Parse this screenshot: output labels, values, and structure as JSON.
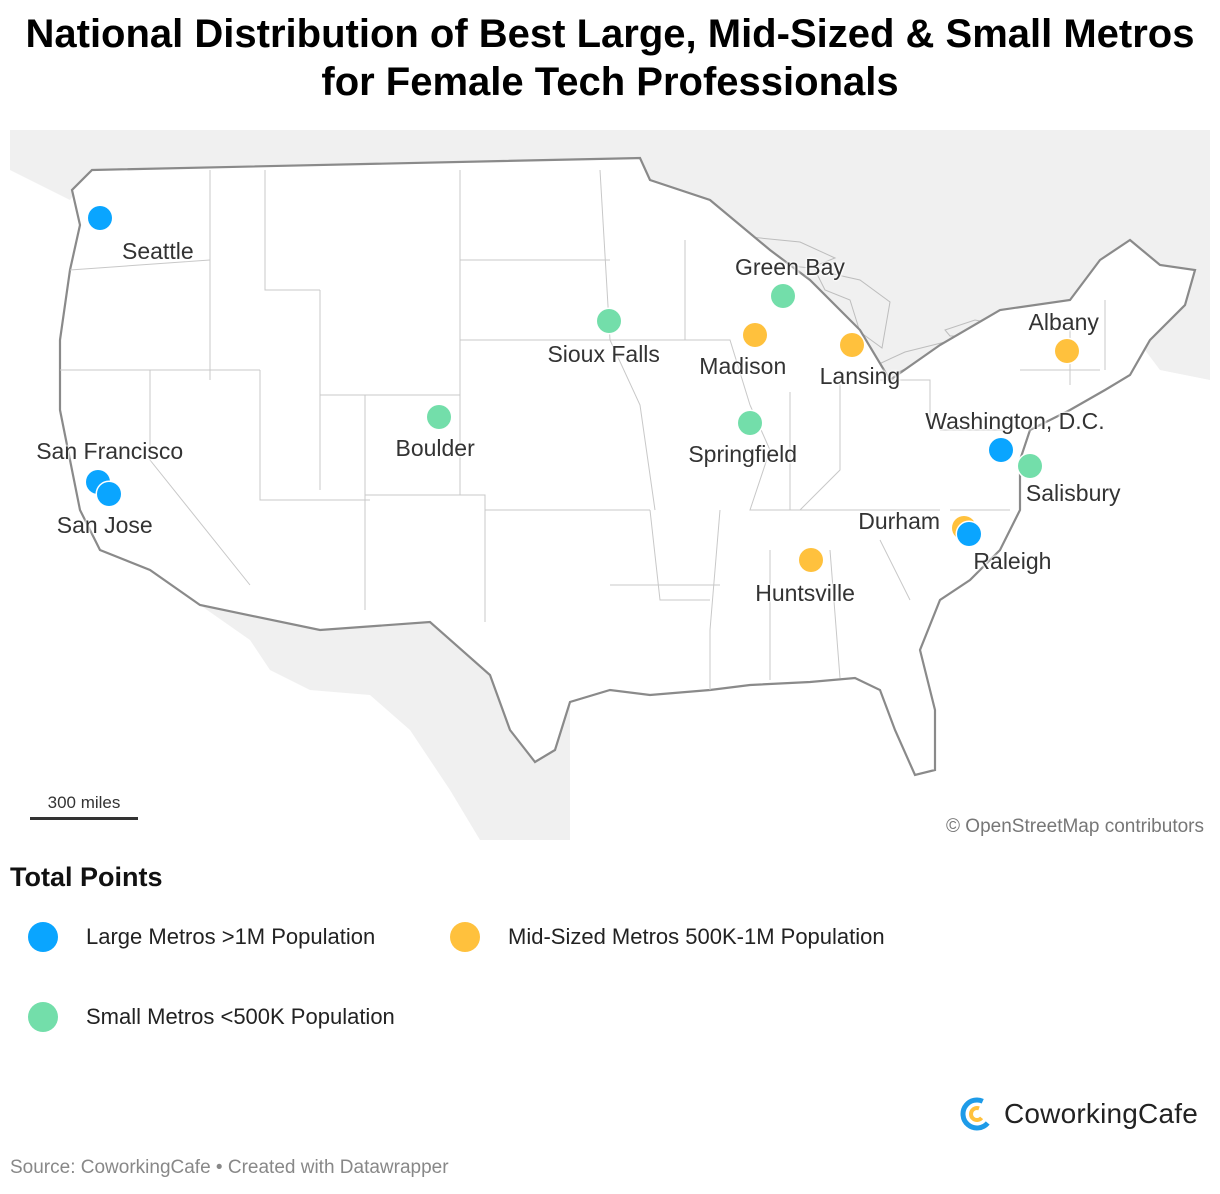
{
  "title": "National Distribution of Best Large, Mid-Sized & Small Metros for Female Tech Professionals",
  "colors": {
    "large": "#0aa5ff",
    "mid": "#ffc13d",
    "small": "#73deaa"
  },
  "map": {
    "scale_label": "300 miles",
    "credit": "© OpenStreetMap contributors",
    "cities": [
      {
        "name": "Seattle",
        "category": "large",
        "lat": 47.61,
        "lon": -122.33
      },
      {
        "name": "San Francisco",
        "category": "large",
        "lat": 37.77,
        "lon": -122.42
      },
      {
        "name": "San Jose",
        "category": "large",
        "lat": 37.34,
        "lon": -121.89
      },
      {
        "name": "Boulder",
        "category": "small",
        "lat": 40.01,
        "lon": -105.27
      },
      {
        "name": "Sioux Falls",
        "category": "small",
        "lat": 43.55,
        "lon": -96.73
      },
      {
        "name": "Green Bay",
        "category": "small",
        "lat": 44.51,
        "lon": -88.01
      },
      {
        "name": "Madison",
        "category": "mid",
        "lat": 43.07,
        "lon": -89.4
      },
      {
        "name": "Lansing",
        "category": "mid",
        "lat": 42.73,
        "lon": -84.56
      },
      {
        "name": "Springfield",
        "category": "small",
        "lat": 39.78,
        "lon": -89.65
      },
      {
        "name": "Huntsville",
        "category": "mid",
        "lat": 34.73,
        "lon": -86.59
      },
      {
        "name": "Albany",
        "category": "mid",
        "lat": 42.65,
        "lon": -73.76
      },
      {
        "name": "Washington, D.C.",
        "category": "large",
        "lat": 38.91,
        "lon": -77.04
      },
      {
        "name": "Salisbury",
        "category": "small",
        "lat": 38.36,
        "lon": -75.6
      },
      {
        "name": "Durham",
        "category": "mid",
        "lat": 35.99,
        "lon": -78.9
      },
      {
        "name": "Raleigh",
        "category": "large",
        "lat": 35.78,
        "lon": -78.64
      }
    ]
  },
  "legend": {
    "title": "Total Points",
    "large_label": "Large Metros >1M Population",
    "mid_label": "Mid-Sized Metros 500K-1M Population",
    "small_label": "Small Metros <500K Population"
  },
  "brand": {
    "name": "CoworkingCafe"
  },
  "source": "Source: CoworkingCafe • Created with Datawrapper"
}
